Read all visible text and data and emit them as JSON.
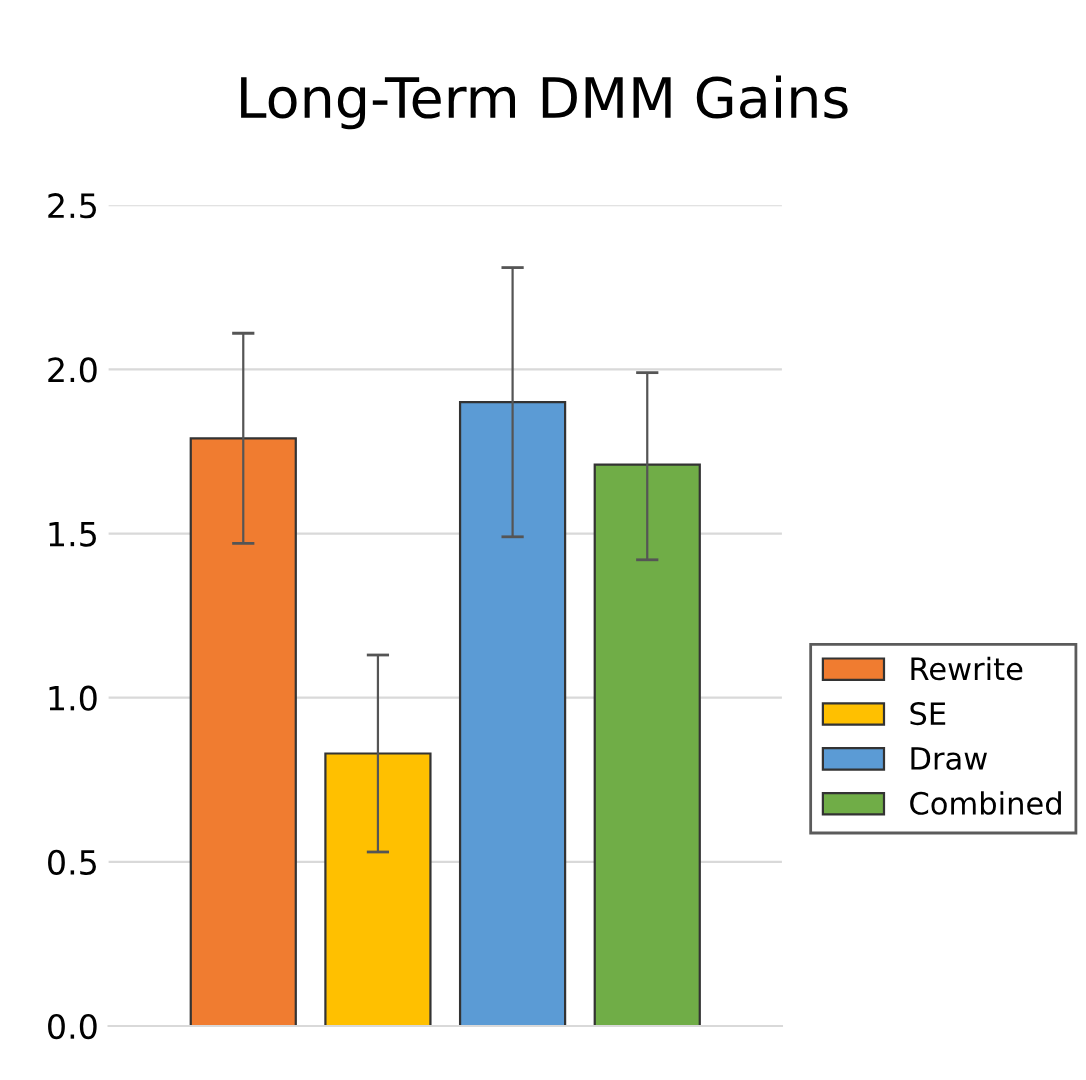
{
  "chart_data": {
    "type": "bar",
    "title": "Long-Term DMM Gains",
    "categories": [
      null
    ],
    "series": [
      {
        "name": "Rewrite",
        "color": "#f07c30",
        "values": [
          1.79
        ],
        "errors": [
          [
            1.47,
            2.11
          ]
        ]
      },
      {
        "name": "SE",
        "color": "#ffc000",
        "values": [
          0.83
        ],
        "errors": [
          [
            0.53,
            1.13
          ]
        ]
      },
      {
        "name": "Draw",
        "color": "#5b9bd5",
        "values": [
          1.9
        ],
        "errors": [
          [
            1.49,
            2.31
          ]
        ]
      },
      {
        "name": "Combined",
        "color": "#70ad47",
        "values": [
          1.71
        ],
        "errors": [
          [
            1.42,
            1.99
          ]
        ]
      }
    ],
    "ylim": [
      0,
      2.5
    ],
    "yticks": [
      {
        "value": 0,
        "label": "0.0"
      },
      {
        "value": 0.5,
        "label": "0.5"
      },
      {
        "value": 1,
        "label": "1.0"
      },
      {
        "value": 1.5,
        "label": "1.5"
      },
      {
        "value": 2,
        "label": "2.0"
      },
      {
        "value": 2.5,
        "label": "2.5"
      }
    ],
    "grid": "y",
    "legend": "right"
  }
}
